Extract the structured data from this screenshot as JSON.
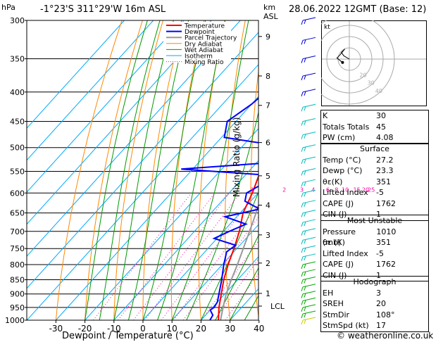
{
  "header": {
    "unit_hpa": "hPa",
    "location": "-1°23'S 311°29'W 16m ASL",
    "km_label": "km",
    "asl_label": "ASL",
    "datetime": "28.06.2022 12GMT (Base: 12)"
  },
  "legend": [
    "Temperature",
    "Dewpoint",
    "Parcel Trajectory",
    "Dry Adiabat",
    "Wet Adiabat",
    "Isotherm",
    "Mixing Ratio"
  ],
  "colors": {
    "temperature": "#ff0000",
    "dewpoint": "#0000ff",
    "parcel": "#999999",
    "dry_adiabat": "#ff8800",
    "wet_adiabat": "#009900",
    "isotherm": "#00aaff",
    "mixing_ratio": "#ff00aa",
    "wind": "#00ccdd"
  },
  "chart_data": {
    "type": "line",
    "xlabel": "Dewpoint / Temperature (°C)",
    "ylabel_left": "hPa",
    "ylabel_right": "Mixing Ratio (g/kg)",
    "pressure_levels": [
      300,
      350,
      400,
      450,
      500,
      550,
      600,
      650,
      700,
      750,
      800,
      850,
      900,
      950,
      1000
    ],
    "x_ticks": [
      -30,
      -20,
      -10,
      0,
      10,
      20,
      30,
      40
    ],
    "km_ticks": [
      {
        "km": "9",
        "p": 320
      },
      {
        "km": "8",
        "p": 375
      },
      {
        "km": "7",
        "p": 422
      },
      {
        "km": "6",
        "p": 490
      },
      {
        "km": "5",
        "p": 560
      },
      {
        "km": "4",
        "p": 630
      },
      {
        "km": "3",
        "p": 710
      },
      {
        "km": "2",
        "p": 795
      },
      {
        "km": "1",
        "p": 898
      }
    ],
    "lcl": {
      "label": "LCL",
      "p": 945
    },
    "mixing_ratio_labels": [
      {
        "label": "1",
        "t": -2
      },
      {
        "label": "2",
        "t": 9
      },
      {
        "label": "3",
        "t": 15
      },
      {
        "label": "4",
        "t": 19
      },
      {
        "label": "6",
        "t": 24
      },
      {
        "label": "8",
        "t": 27
      },
      {
        "label": "10",
        "t": 30
      },
      {
        "label": "15",
        "t": 34
      },
      {
        "label": "20",
        "t": 37
      },
      {
        "label": "25",
        "t": 39
      }
    ],
    "series": [
      {
        "name": "Temperature",
        "points": [
          [
            1008,
            27.2
          ],
          [
            1000,
            26.0
          ],
          [
            950,
            22.2
          ],
          [
            900,
            18.8
          ],
          [
            850,
            15.2
          ],
          [
            800,
            12.0
          ],
          [
            750,
            9.0
          ],
          [
            700,
            5.5
          ],
          [
            650,
            1.0
          ],
          [
            600,
            -2.0
          ],
          [
            550,
            -6.0
          ],
          [
            500,
            -12.5
          ],
          [
            475,
            -14.0
          ],
          [
            450,
            -15.0
          ],
          [
            420,
            -20.0
          ],
          [
            400,
            -23.0
          ],
          [
            375,
            -28.0
          ],
          [
            350,
            -32.5
          ],
          [
            320,
            -38.0
          ],
          [
            300,
            -42.0
          ]
        ]
      },
      {
        "name": "Dewpoint",
        "points": [
          [
            1008,
            23.3
          ],
          [
            980,
            22.5
          ],
          [
            960,
            20.0
          ],
          [
            950,
            20.5
          ],
          [
            930,
            20.0
          ],
          [
            900,
            18.0
          ],
          [
            850,
            14.5
          ],
          [
            800,
            10.5
          ],
          [
            760,
            7.5
          ],
          [
            740,
            8.5
          ],
          [
            720,
            -1.0
          ],
          [
            700,
            2.0
          ],
          [
            680,
            5.5
          ],
          [
            660,
            -4.0
          ],
          [
            640,
            5.5
          ],
          [
            620,
            -2.0
          ],
          [
            600,
            -4.0
          ],
          [
            560,
            1.0
          ],
          [
            545,
            -34.0
          ],
          [
            530,
            -3.0
          ],
          [
            520,
            -2.0
          ],
          [
            505,
            -1.0
          ],
          [
            500,
            -3.0
          ],
          [
            480,
            -29.0
          ],
          [
            450,
            -33.0
          ],
          [
            420,
            -30.0
          ],
          [
            400,
            -29.0
          ],
          [
            370,
            -33.0
          ],
          [
            345,
            -34.0
          ],
          [
            320,
            -28.0
          ],
          [
            300,
            -23.0
          ]
        ]
      },
      {
        "name": "Parcel Trajectory",
        "points": [
          [
            1008,
            27.2
          ],
          [
            945,
            23.3
          ],
          [
            900,
            20.5
          ],
          [
            850,
            17.8
          ],
          [
            800,
            15.2
          ],
          [
            750,
            12.2
          ],
          [
            700,
            9.0
          ],
          [
            650,
            5.5
          ],
          [
            600,
            1.5
          ],
          [
            550,
            -3.0
          ],
          [
            500,
            -8.0
          ],
          [
            450,
            -14.0
          ],
          [
            400,
            -21.0
          ],
          [
            350,
            -29.0
          ],
          [
            300,
            -38.0
          ]
        ]
      }
    ]
  },
  "indices": [
    {
      "label": "K",
      "value": "30"
    },
    {
      "label": "Totals Totals",
      "value": "45"
    },
    {
      "label": "PW (cm)",
      "value": "4.08"
    }
  ],
  "surface": {
    "title": "Surface",
    "rows": [
      {
        "label": "Temp (°C)",
        "value": "27.2"
      },
      {
        "label": "Dewp (°C)",
        "value": "23.3"
      },
      {
        "label": "θε(K)",
        "value": "351"
      },
      {
        "label": "Lifted Index",
        "value": "-5"
      },
      {
        "label": "CAPE (J)",
        "value": "1762"
      },
      {
        "label": "CIN (J)",
        "value": "1"
      }
    ]
  },
  "most_unstable": {
    "title": "Most Unstable",
    "rows": [
      {
        "label": "Pressure (mb)",
        "value": "1010"
      },
      {
        "label": "θε (K)",
        "value": "351"
      },
      {
        "label": "Lifted Index",
        "value": "-5"
      },
      {
        "label": "CAPE (J)",
        "value": "1762"
      },
      {
        "label": "CIN (J)",
        "value": "1"
      }
    ]
  },
  "hodograph_table": {
    "title": "Hodograph",
    "rows": [
      {
        "label": "EH",
        "value": "3"
      },
      {
        "label": "SREH",
        "value": "20"
      },
      {
        "label": "StmDir",
        "value": "108°"
      },
      {
        "label": "StmSpd (kt)",
        "value": "17"
      }
    ]
  },
  "hodograph": {
    "unit": "kt",
    "ring_labels": [
      "20",
      "30",
      "40"
    ],
    "points_kt": [
      [
        0,
        0
      ],
      [
        -5,
        3
      ],
      [
        -7,
        6
      ],
      [
        -4,
        9
      ],
      [
        -8,
        4
      ],
      [
        -11,
        1
      ],
      [
        -6,
        -3
      ]
    ]
  },
  "footer": "© weatheronline.co.uk"
}
